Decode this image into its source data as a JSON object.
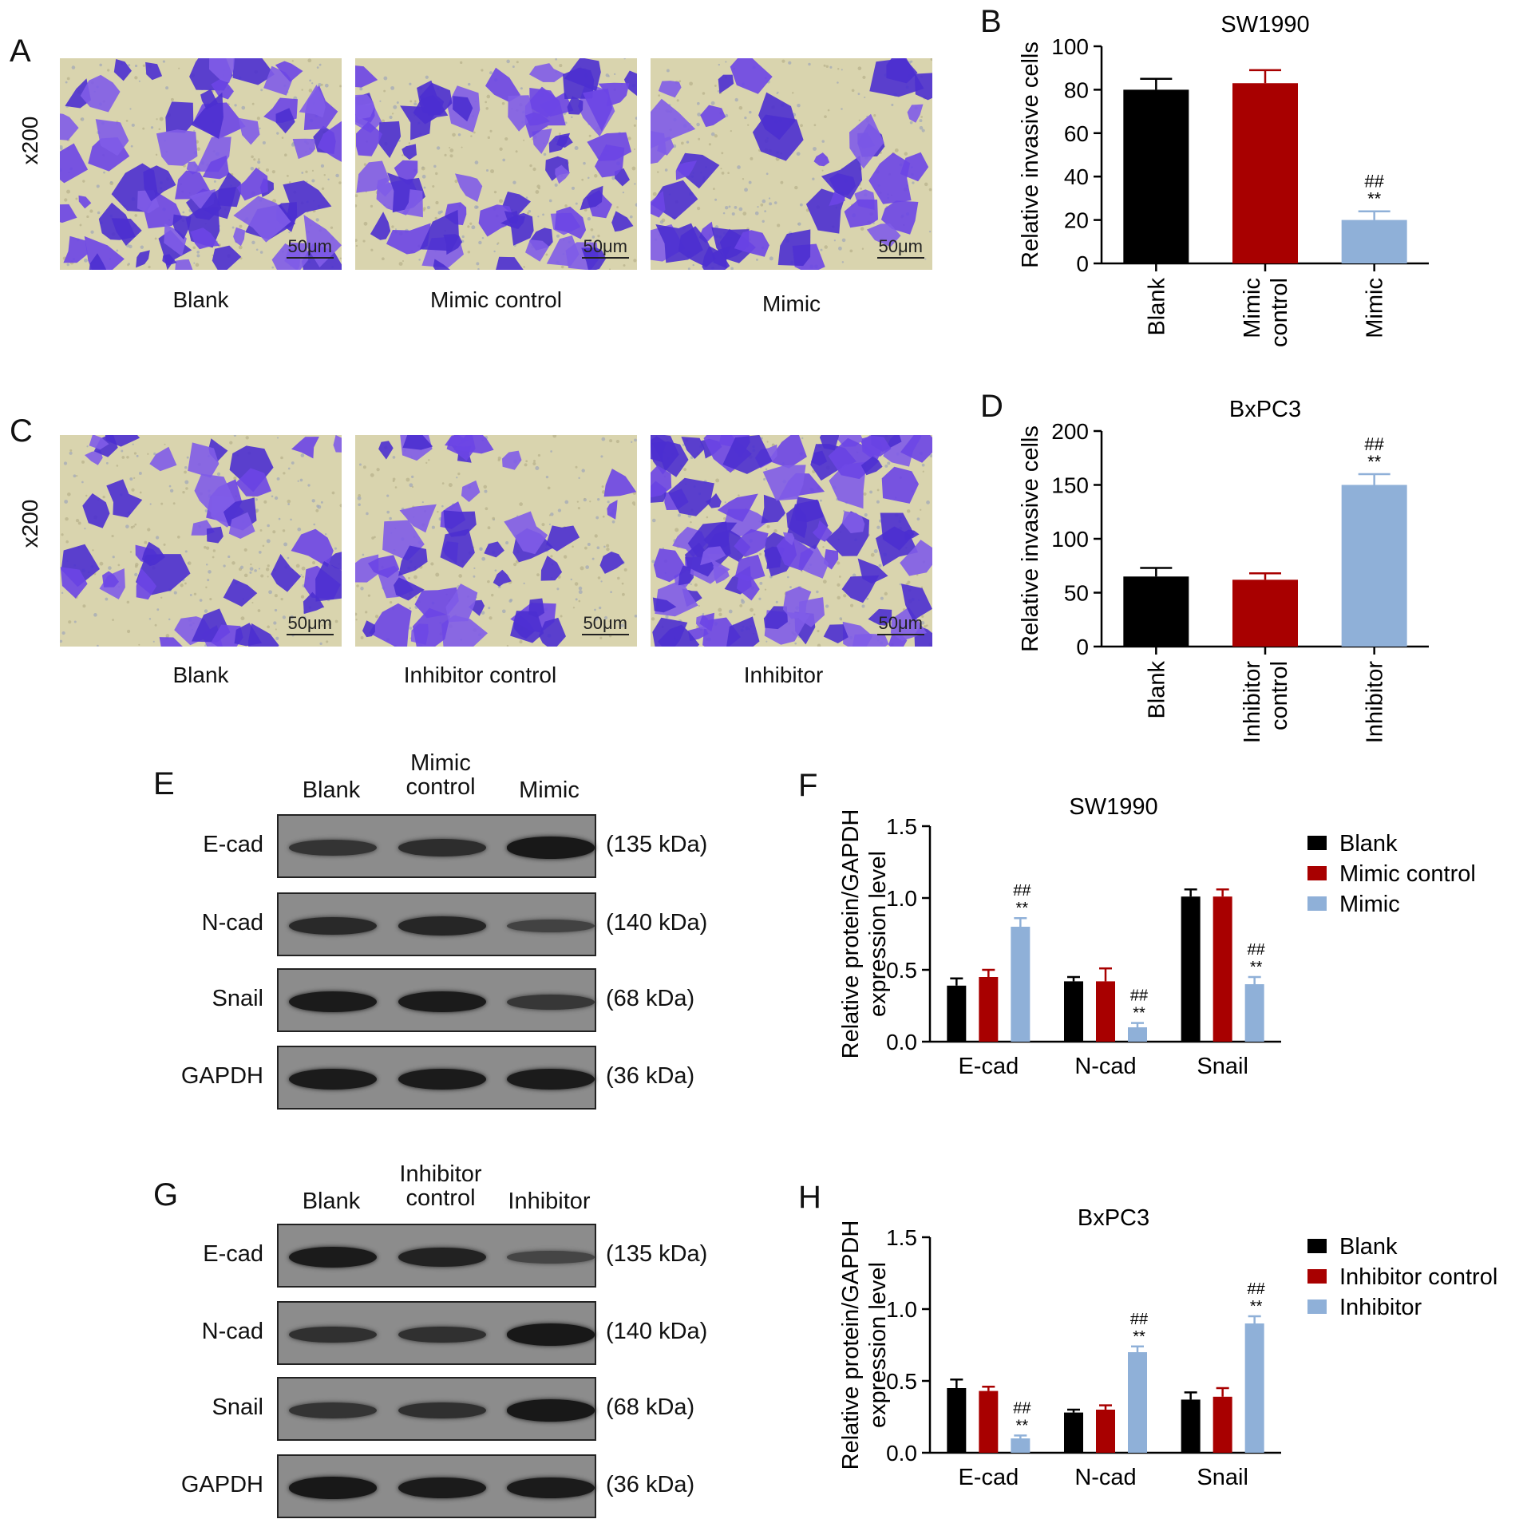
{
  "panels": {
    "A": {
      "letter": "A",
      "magnification": "x200",
      "scale_bar": "50μm",
      "images": [
        {
          "label": "Blank",
          "density": 0.55
        },
        {
          "label": "Mimic control",
          "density": 0.55
        },
        {
          "label": "Mimic",
          "density": 0.35
        }
      ]
    },
    "C": {
      "letter": "C",
      "magnification": "x200",
      "scale_bar": "50μm",
      "images": [
        {
          "label": "Blank",
          "density": 0.35
        },
        {
          "label": "Inhibitor control",
          "density": 0.35
        },
        {
          "label": "Inhibitor",
          "density": 0.75
        }
      ]
    },
    "E": {
      "letter": "E",
      "columns": [
        "Blank",
        "Mimic control",
        "Mimic"
      ],
      "rows": [
        {
          "label": "E-cad",
          "kda": "(135 kDa)",
          "intensity": [
            0.55,
            0.65,
            0.95
          ]
        },
        {
          "label": "N-cad",
          "kda": "(140 kDa)",
          "intensity": [
            0.7,
            0.75,
            0.35
          ]
        },
        {
          "label": "Snail",
          "kda": "(68 kDa)",
          "intensity": [
            0.9,
            0.9,
            0.5
          ]
        },
        {
          "label": "GAPDH",
          "kda": "(36 kDa)",
          "intensity": [
            0.9,
            0.9,
            0.9
          ]
        }
      ]
    },
    "G": {
      "letter": "G",
      "columns": [
        "Blank",
        "Inhibitor control",
        "Inhibitor"
      ],
      "rows": [
        {
          "label": "E-cad",
          "kda": "(135 kDa)",
          "intensity": [
            0.9,
            0.8,
            0.3
          ]
        },
        {
          "label": "N-cad",
          "kda": "(140 kDa)",
          "intensity": [
            0.6,
            0.6,
            0.95
          ]
        },
        {
          "label": "Snail",
          "kda": "(68 kDa)",
          "intensity": [
            0.55,
            0.6,
            0.95
          ]
        },
        {
          "label": "GAPDH",
          "kda": "(36 kDa)",
          "intensity": [
            0.95,
            0.9,
            0.9
          ]
        }
      ]
    },
    "B": {
      "letter": "B"
    },
    "D": {
      "letter": "D"
    },
    "F": {
      "letter": "F"
    },
    "H": {
      "letter": "H"
    }
  },
  "colors": {
    "blank": "#000000",
    "control": "#a80000",
    "treatment": "#8fb0d8"
  },
  "chart_data": [
    {
      "id": "B",
      "type": "bar",
      "title": "SW1990",
      "ylabel": "Relative invasive cells",
      "categories": [
        "Blank",
        "Mimic control",
        "Mimic"
      ],
      "values": [
        80,
        83,
        20
      ],
      "errors": [
        5,
        6,
        4
      ],
      "annotations": [
        "",
        "",
        "##\n**"
      ],
      "ylim": [
        0,
        100
      ],
      "yticks": [
        0,
        20,
        40,
        60,
        80,
        100
      ]
    },
    {
      "id": "D",
      "type": "bar",
      "title": "BxPC3",
      "ylabel": "Relative invasive cells",
      "categories": [
        "Blank",
        "Inhibitor control",
        "Inhibitor"
      ],
      "values": [
        65,
        62,
        150
      ],
      "errors": [
        8,
        6,
        10
      ],
      "annotations": [
        "",
        "",
        "##\n**"
      ],
      "ylim": [
        0,
        200
      ],
      "yticks": [
        0,
        50,
        100,
        150,
        200
      ]
    },
    {
      "id": "F",
      "type": "bar",
      "title": "SW1990",
      "ylabel": "Relative protein/GAPDH expression level",
      "categories": [
        "E-cad",
        "N-cad",
        "Snail"
      ],
      "series": [
        {
          "name": "Blank",
          "values": [
            0.39,
            0.42,
            1.01
          ],
          "errors": [
            0.05,
            0.03,
            0.05
          ]
        },
        {
          "name": "Mimic control",
          "values": [
            0.45,
            0.42,
            1.01
          ],
          "errors": [
            0.05,
            0.09,
            0.05
          ]
        },
        {
          "name": "Mimic",
          "values": [
            0.8,
            0.1,
            0.4
          ],
          "errors": [
            0.06,
            0.03,
            0.05
          ]
        }
      ],
      "annotations": [
        [
          "",
          "",
          "##\n**"
        ],
        [
          "",
          "",
          "##\n**"
        ],
        [
          "",
          "",
          "##\n**"
        ]
      ],
      "ylim": [
        0,
        1.5
      ],
      "yticks": [
        "0.0",
        "0.5",
        "1.0",
        "1.5"
      ],
      "legend": "right"
    },
    {
      "id": "H",
      "type": "bar",
      "title": "BxPC3",
      "ylabel": "Relative protein/GAPDH expression level",
      "categories": [
        "E-cad",
        "N-cad",
        "Snail"
      ],
      "series": [
        {
          "name": "Blank",
          "values": [
            0.45,
            0.28,
            0.37
          ],
          "errors": [
            0.06,
            0.02,
            0.05
          ]
        },
        {
          "name": "Inhibitor control",
          "values": [
            0.43,
            0.3,
            0.39
          ],
          "errors": [
            0.03,
            0.03,
            0.06
          ]
        },
        {
          "name": "Inhibitor",
          "values": [
            0.1,
            0.7,
            0.9
          ],
          "errors": [
            0.02,
            0.04,
            0.05
          ]
        }
      ],
      "annotations": [
        [
          "",
          "",
          "##\n**"
        ],
        [
          "",
          "",
          "##\n**"
        ],
        [
          "",
          "",
          "##\n**"
        ]
      ],
      "ylim": [
        0,
        1.5
      ],
      "yticks": [
        "0.0",
        "0.5",
        "1.0",
        "1.5"
      ],
      "legend": "right"
    }
  ]
}
